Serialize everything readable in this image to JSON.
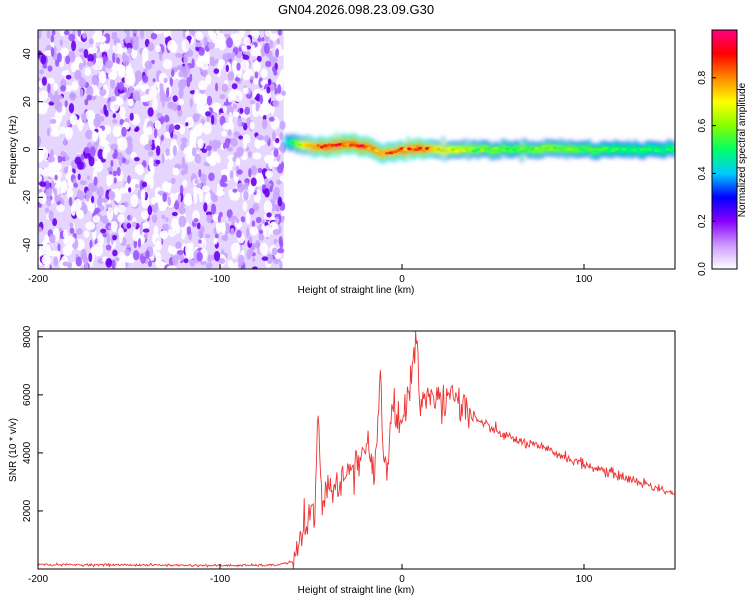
{
  "title": "GN04.2026.098.23.09.G30",
  "chart_data": [
    {
      "type": "heatmap",
      "xlabel": "Height of straight line (km)",
      "ylabel": "Frequency (Hz)",
      "xlim": [
        -200,
        150
      ],
      "ylim": [
        -50,
        50
      ],
      "x_ticks": [
        -200,
        -100,
        0,
        100
      ],
      "y_ticks": [
        -40,
        -20,
        0,
        20,
        40
      ],
      "colorbar": {
        "label": "Normalized spectral amplitude",
        "range": [
          0,
          1
        ],
        "ticks": [
          "0.0",
          "0.2",
          "0.4",
          "0.6",
          "0.8"
        ],
        "colors": [
          "#ffffff",
          "#cc99ff",
          "#8800ff",
          "#0000ff",
          "#00ccff",
          "#00ff66",
          "#88ff00",
          "#ffff00",
          "#ff8800",
          "#ff0000",
          "#ff0080"
        ]
      },
      "noise_region_x": [
        -200,
        -65
      ],
      "trace": {
        "x": [
          -64,
          -55,
          -45,
          -35,
          -25,
          -15,
          -10,
          -5,
          0,
          10,
          20,
          40,
          60,
          80,
          100,
          120,
          150
        ],
        "freq": [
          3,
          2,
          1.5,
          2,
          2,
          0,
          -2,
          -1,
          0,
          0.5,
          0,
          0,
          0,
          0.5,
          0,
          0,
          0
        ],
        "amplitude": [
          0.4,
          0.7,
          0.85,
          0.9,
          0.9,
          0.85,
          0.8,
          0.8,
          0.85,
          0.9,
          0.7,
          0.6,
          0.55,
          0.6,
          0.55,
          0.5,
          0.5
        ]
      }
    },
    {
      "type": "line",
      "xlabel": "Height of straight line (km)",
      "ylabel": "SNR (10 * v/v)",
      "xlim": [
        -200,
        150
      ],
      "ylim": [
        0,
        8200
      ],
      "x_ticks": [
        -200,
        -100,
        0,
        100
      ],
      "y_ticks": [
        2000,
        4000,
        6000,
        8000
      ],
      "line_color": "#ee3333",
      "series": [
        {
          "x": [
            -200,
            -150,
            -100,
            -70,
            -60,
            -55,
            -52,
            -50,
            -48,
            -46,
            -44,
            -42,
            -40,
            -35,
            -30,
            -25,
            -20,
            -15,
            -12,
            -10,
            -8,
            -5,
            0,
            5,
            8,
            10,
            12,
            15,
            20,
            25,
            30,
            35,
            40,
            50,
            60,
            80,
            100,
            120,
            140,
            150
          ],
          "y": [
            150,
            140,
            120,
            130,
            250,
            900,
            1400,
            2200,
            1500,
            5300,
            2000,
            2600,
            3000,
            2900,
            3300,
            3600,
            4200,
            3400,
            6500,
            3800,
            3500,
            5500,
            5000,
            6700,
            8200,
            5500,
            6000,
            5700,
            5900,
            5900,
            5800,
            5600,
            5200,
            4800,
            4500,
            4100,
            3600,
            3200,
            2800,
            2600
          ]
        }
      ]
    }
  ]
}
